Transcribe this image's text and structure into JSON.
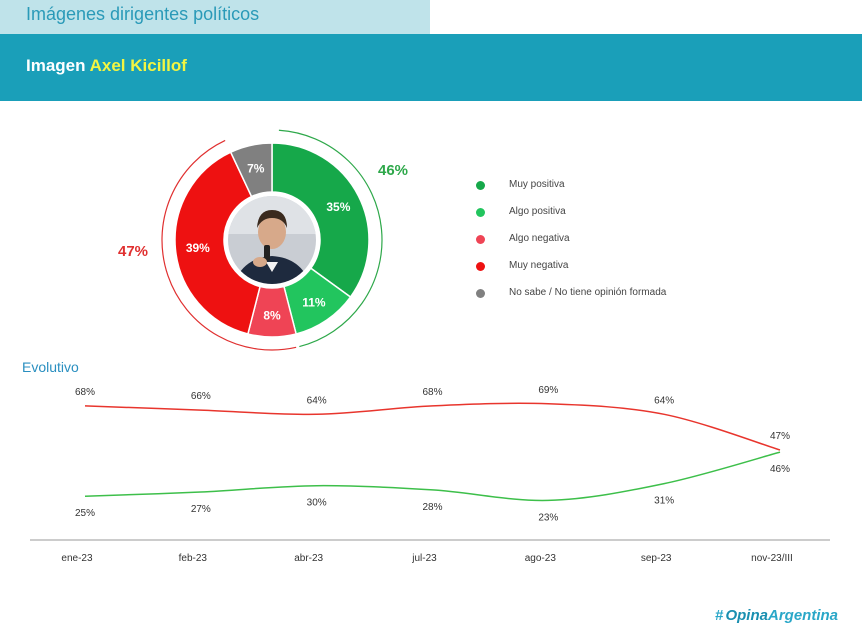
{
  "header": {
    "section_title": "Imágenes dirigentes políticos",
    "banner_prefix": "Imagen",
    "banner_name": "Axel Kicillof"
  },
  "donut": {
    "positive_total": "46%",
    "negative_total": "47%",
    "photo_icon": "portrait-photo"
  },
  "legend": [
    {
      "label": "Muy positiva",
      "color": "#16a84a"
    },
    {
      "label": "Algo positiva",
      "color": "#22c55e"
    },
    {
      "label": "Algo negativa",
      "color": "#ef4455"
    },
    {
      "label": "Muy negativa",
      "color": "#ee1111"
    },
    {
      "label": "No sabe / No tiene opinión formada",
      "color": "#808080"
    }
  ],
  "evolutivo_title": "Evolutivo",
  "brand": {
    "hash": "#",
    "part1": "Opina",
    "part2": "Argentina"
  },
  "chart_data": [
    {
      "type": "pie",
      "categories": [
        "Muy positiva",
        "Algo positiva",
        "Algo negativa",
        "Muy negativa",
        "No sabe / No tiene opinión formada"
      ],
      "values": [
        35,
        11,
        8,
        39,
        7
      ],
      "labels": [
        "35%",
        "11%",
        "8%",
        "39%",
        "7%"
      ],
      "colors": [
        "#16a84a",
        "#22c55e",
        "#ef4455",
        "#ee1111",
        "#808080"
      ]
    },
    {
      "type": "line",
      "categories": [
        "ene-23",
        "feb-23",
        "abr-23",
        "jul-23",
        "ago-23",
        "sep-23",
        "nov-23/III"
      ],
      "series": [
        {
          "values": [
            68,
            66,
            64,
            68,
            69,
            64,
            47
          ],
          "labels": [
            "68%",
            "66%",
            "64%",
            "68%",
            "69%",
            "64%",
            "47%"
          ],
          "color": "#e8352d"
        },
        {
          "values": [
            25,
            27,
            30,
            28,
            23,
            31,
            46
          ],
          "labels": [
            "25%",
            "27%",
            "30%",
            "28%",
            "23%",
            "31%",
            "46%"
          ],
          "color": "#3dbf4a"
        }
      ]
    }
  ]
}
